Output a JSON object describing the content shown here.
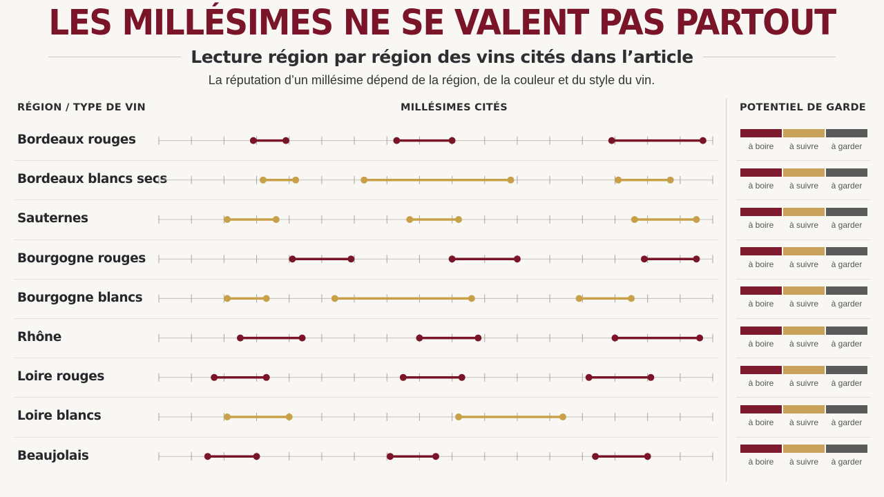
{
  "header": {
    "title": "LES MILLÉSIMES NE SE VALENT PAS PARTOUT",
    "subtitle": "Lecture région par région des vins cités dans l’article",
    "note": "La réputation d’un millésime dépend de la région, de la couleur et du style du vin."
  },
  "columns": {
    "region": "RÉGION / TYPE DE VIN",
    "millesimes": "MILLÉSIMES CITÉS",
    "garde": "POTENTIEL DE GARDE"
  },
  "colors": {
    "rouge": "#7a1428",
    "blanc": "#c9a04a",
    "garder": "#5a5a5a",
    "suivre_swatch": "#c9a15a",
    "boire_swatch": "#7d1a2e"
  },
  "legend": {
    "boire": "à boire",
    "suivre": "à suivre",
    "garder": "à garder"
  },
  "chart_data": {
    "type": "dumbbell",
    "title": "MILLÉSIMES CITÉS",
    "xlim": [
      0,
      17
    ],
    "ticks": 18,
    "series_types": [
      "rouge",
      "blanc"
    ],
    "rows": [
      {
        "label": "Bordeaux rouges",
        "color": "rouge",
        "segments": [
          [
            2.9,
            3.9
          ],
          [
            7.3,
            9.0
          ],
          [
            13.9,
            16.7
          ]
        ]
      },
      {
        "label": "Bordeaux blancs secs",
        "color": "blanc",
        "segments": [
          [
            3.2,
            4.2
          ],
          [
            6.3,
            10.8
          ],
          [
            14.1,
            15.7
          ]
        ]
      },
      {
        "label": "Sauternes",
        "color": "blanc",
        "segments": [
          [
            2.1,
            3.6
          ],
          [
            7.7,
            9.2
          ],
          [
            14.6,
            16.5
          ]
        ]
      },
      {
        "label": "Bourgogne rouges",
        "color": "rouge",
        "segments": [
          [
            4.1,
            5.9
          ],
          [
            9.0,
            11.0
          ],
          [
            14.9,
            16.5
          ]
        ]
      },
      {
        "label": "Bourgogne blancs",
        "color": "blanc",
        "segments": [
          [
            2.1,
            3.3
          ],
          [
            5.4,
            9.6
          ],
          [
            12.9,
            14.5
          ]
        ]
      },
      {
        "label": "Rhône",
        "color": "rouge",
        "segments": [
          [
            2.5,
            4.4
          ],
          [
            8.0,
            9.8
          ],
          [
            14.0,
            16.6
          ]
        ]
      },
      {
        "label": "Loire rouges",
        "color": "rouge",
        "segments": [
          [
            1.7,
            3.3
          ],
          [
            7.5,
            9.3
          ],
          [
            13.2,
            15.1
          ]
        ]
      },
      {
        "label": "Loire blancs",
        "color": "blanc",
        "segments": [
          [
            2.1,
            4.0
          ],
          [
            9.2,
            12.4
          ]
        ]
      },
      {
        "label": "Beaujolais",
        "color": "rouge",
        "segments": [
          [
            1.5,
            3.0
          ],
          [
            7.1,
            8.5
          ],
          [
            13.4,
            15.0
          ]
        ]
      }
    ]
  }
}
